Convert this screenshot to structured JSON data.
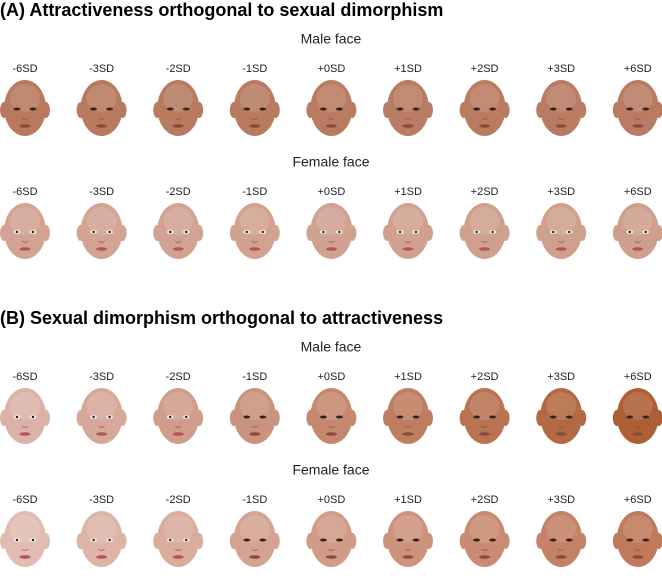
{
  "panels": [
    {
      "title": "(A) Attractiveness orthogonal to sexual dimorphism",
      "rows": [
        {
          "label": "Male face",
          "levels": [
            "-6SD",
            "-3SD",
            "-2SD",
            "-1SD",
            "+0SD",
            "+1SD",
            "+2SD",
            "+3SD",
            "+6SD"
          ]
        },
        {
          "label": "Female face",
          "levels": [
            "-6SD",
            "-3SD",
            "-2SD",
            "-1SD",
            "+0SD",
            "+1SD",
            "+2SD",
            "+3SD",
            "+6SD"
          ]
        }
      ]
    },
    {
      "title": "(B) Sexual dimorphism orthogonal to attractiveness",
      "rows": [
        {
          "label": "Male face",
          "levels": [
            "-6SD",
            "-3SD",
            "-2SD",
            "-1SD",
            "+0SD",
            "+1SD",
            "+2SD",
            "+3SD",
            "+6SD"
          ]
        },
        {
          "label": "Female face",
          "levels": [
            "-6SD",
            "-3SD",
            "-2SD",
            "-1SD",
            "+0SD",
            "+1SD",
            "+2SD",
            "+3SD",
            "+6SD"
          ]
        }
      ]
    }
  ]
}
